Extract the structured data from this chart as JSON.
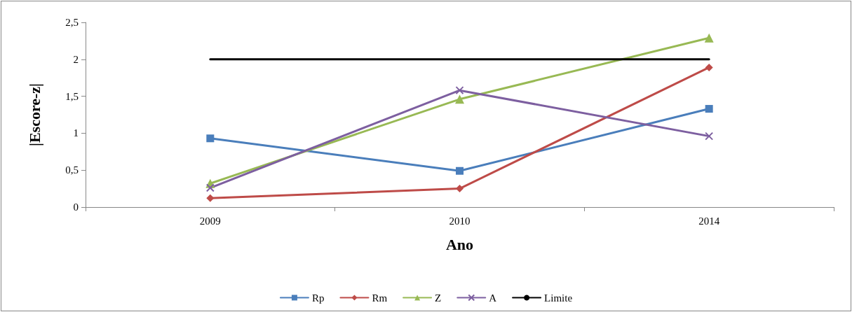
{
  "chart_data": {
    "type": "line",
    "xlabel": "Ano",
    "ylabel": "|Escore-z|",
    "categories": [
      "2009",
      "2010",
      "2014"
    ],
    "series": [
      {
        "name": "Rp",
        "color": "#4a7ebb",
        "marker": "square",
        "values": [
          0.93,
          0.49,
          1.33
        ]
      },
      {
        "name": "Rm",
        "color": "#be4b48",
        "marker": "diamond",
        "values": [
          0.12,
          0.25,
          1.89
        ]
      },
      {
        "name": "Z",
        "color": "#98b954",
        "marker": "triangle",
        "values": [
          0.32,
          1.46,
          2.29
        ]
      },
      {
        "name": "A",
        "color": "#7d5fa0",
        "marker": "cross",
        "values": [
          0.26,
          1.58,
          0.96
        ]
      },
      {
        "name": "Limite",
        "color": "#000000",
        "marker": "none",
        "values": [
          2,
          2,
          2
        ]
      }
    ],
    "ylim": [
      0,
      2.5
    ],
    "yticks": [
      0,
      {
        "value": 0.5,
        "label": "0,5"
      },
      1,
      {
        "value": 1.5,
        "label": "1,5"
      },
      2,
      {
        "value": 2.5,
        "label": "2,5"
      }
    ],
    "grid": false,
    "legend": "bottom",
    "line_style": "solid"
  }
}
